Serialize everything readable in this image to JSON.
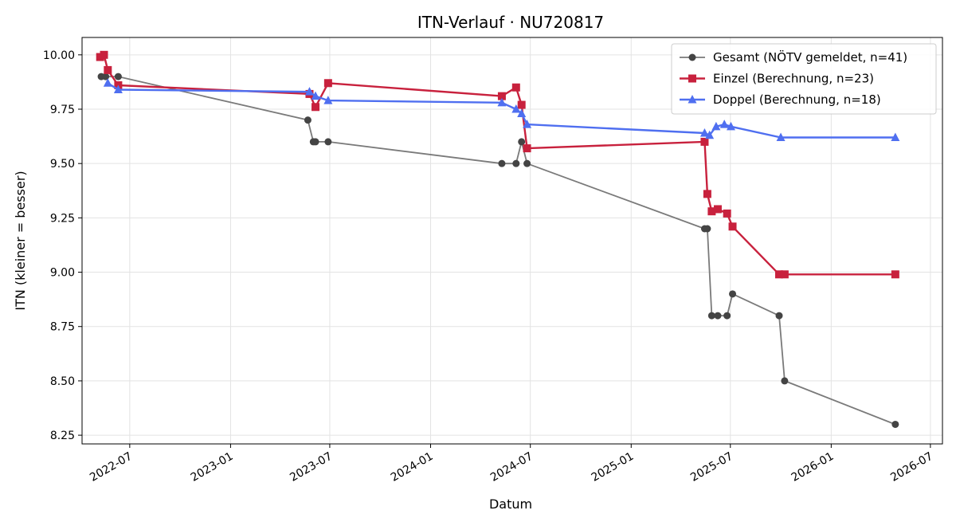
{
  "chart_data": {
    "type": "line",
    "title": "ITN-Verlauf · NU720817",
    "xlabel": "Datum",
    "ylabel": "ITN  (kleiner = besser)",
    "x_axis_kind": "date",
    "xlim": [
      "2022-04-05",
      "2026-07-23"
    ],
    "ylim": [
      8.21,
      10.08
    ],
    "x_ticks": [
      {
        "date": "2022-07-01",
        "label": "2022-07"
      },
      {
        "date": "2023-01-01",
        "label": "2023-01"
      },
      {
        "date": "2023-07-01",
        "label": "2023-07"
      },
      {
        "date": "2024-01-01",
        "label": "2024-01"
      },
      {
        "date": "2024-07-01",
        "label": "2024-07"
      },
      {
        "date": "2025-01-01",
        "label": "2025-01"
      },
      {
        "date": "2025-07-01",
        "label": "2025-07"
      },
      {
        "date": "2026-01-01",
        "label": "2026-01"
      },
      {
        "date": "2026-07-01",
        "label": "2026-07"
      }
    ],
    "y_ticks": [
      {
        "value": 8.25,
        "label": "8.25"
      },
      {
        "value": 8.5,
        "label": "8.50"
      },
      {
        "value": 8.75,
        "label": "8.75"
      },
      {
        "value": 9.0,
        "label": "9.00"
      },
      {
        "value": 9.25,
        "label": "9.25"
      },
      {
        "value": 9.5,
        "label": "9.50"
      },
      {
        "value": 9.75,
        "label": "9.75"
      },
      {
        "value": 10.0,
        "label": "10.00"
      }
    ],
    "grid": true,
    "legend_position": "top-right",
    "series": [
      {
        "name": "Gesamt (NÖTV gemeldet, n=41)",
        "color": "#444444",
        "line_color": "#7a7a7a",
        "marker": "circle",
        "points": [
          {
            "x": "2022-05-10",
            "y": 9.9
          },
          {
            "x": "2022-05-18",
            "y": 9.9
          },
          {
            "x": "2022-06-10",
            "y": 9.9
          },
          {
            "x": "2023-05-22",
            "y": 9.7
          },
          {
            "x": "2023-06-01",
            "y": 9.6
          },
          {
            "x": "2023-06-05",
            "y": 9.6
          },
          {
            "x": "2023-06-28",
            "y": 9.6
          },
          {
            "x": "2024-05-10",
            "y": 9.5
          },
          {
            "x": "2024-06-05",
            "y": 9.5
          },
          {
            "x": "2024-06-15",
            "y": 9.6
          },
          {
            "x": "2024-06-25",
            "y": 9.5
          },
          {
            "x": "2025-05-15",
            "y": 9.2
          },
          {
            "x": "2025-05-20",
            "y": 9.2
          },
          {
            "x": "2025-05-28",
            "y": 8.8
          },
          {
            "x": "2025-06-08",
            "y": 8.8
          },
          {
            "x": "2025-06-25",
            "y": 8.8
          },
          {
            "x": "2025-07-05",
            "y": 8.9
          },
          {
            "x": "2025-09-28",
            "y": 8.8
          },
          {
            "x": "2025-10-08",
            "y": 8.5
          },
          {
            "x": "2026-04-28",
            "y": 8.3
          }
        ]
      },
      {
        "name": "Einzel (Berechnung, n=23)",
        "color": "#c8213d",
        "line_color": "#c8213d",
        "marker": "square",
        "points": [
          {
            "x": "2022-05-08",
            "y": 9.99
          },
          {
            "x": "2022-05-15",
            "y": 10.0
          },
          {
            "x": "2022-05-22",
            "y": 9.93
          },
          {
            "x": "2022-06-10",
            "y": 9.86
          },
          {
            "x": "2023-05-25",
            "y": 9.82
          },
          {
            "x": "2023-06-05",
            "y": 9.76
          },
          {
            "x": "2023-06-28",
            "y": 9.87
          },
          {
            "x": "2024-05-10",
            "y": 9.81
          },
          {
            "x": "2024-06-05",
            "y": 9.85
          },
          {
            "x": "2024-06-15",
            "y": 9.77
          },
          {
            "x": "2024-06-25",
            "y": 9.57
          },
          {
            "x": "2025-05-15",
            "y": 9.6
          },
          {
            "x": "2025-05-20",
            "y": 9.36
          },
          {
            "x": "2025-05-28",
            "y": 9.28
          },
          {
            "x": "2025-06-08",
            "y": 9.29
          },
          {
            "x": "2025-06-25",
            "y": 9.27
          },
          {
            "x": "2025-07-05",
            "y": 9.21
          },
          {
            "x": "2025-09-28",
            "y": 8.99
          },
          {
            "x": "2025-10-08",
            "y": 8.99
          },
          {
            "x": "2026-04-28",
            "y": 8.99
          }
        ]
      },
      {
        "name": "Doppel (Berechnung, n=18)",
        "color": "#4f6ff0",
        "line_color": "#4f6ff0",
        "marker": "triangle",
        "points": [
          {
            "x": "2022-05-22",
            "y": 9.87
          },
          {
            "x": "2022-06-10",
            "y": 9.84
          },
          {
            "x": "2023-05-25",
            "y": 9.83
          },
          {
            "x": "2023-06-05",
            "y": 9.81
          },
          {
            "x": "2023-06-28",
            "y": 9.79
          },
          {
            "x": "2024-05-10",
            "y": 9.78
          },
          {
            "x": "2024-06-05",
            "y": 9.75
          },
          {
            "x": "2024-06-15",
            "y": 9.73
          },
          {
            "x": "2024-06-25",
            "y": 9.68
          },
          {
            "x": "2025-05-15",
            "y": 9.64
          },
          {
            "x": "2025-05-24",
            "y": 9.63
          },
          {
            "x": "2025-06-05",
            "y": 9.67
          },
          {
            "x": "2025-06-20",
            "y": 9.68
          },
          {
            "x": "2025-07-02",
            "y": 9.67
          },
          {
            "x": "2025-10-01",
            "y": 9.62
          },
          {
            "x": "2026-04-28",
            "y": 9.62
          }
        ]
      }
    ]
  }
}
